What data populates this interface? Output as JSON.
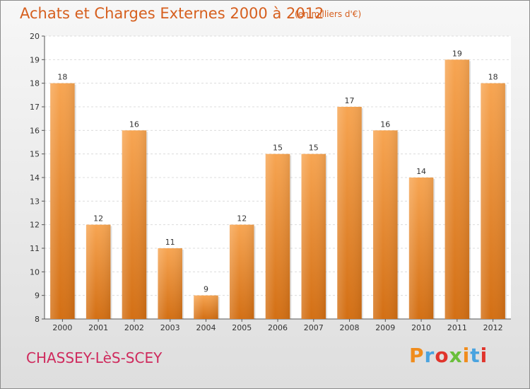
{
  "header": {
    "title": "Achats et Charges Externes 2000 à 2012",
    "unit": "(en milliers d'€)"
  },
  "footer": {
    "town": "CHASSEY-LèS-SCEY",
    "logo": {
      "text": "Proxiti",
      "colors": [
        "#f08c1c",
        "#4aa3df",
        "#e0342c",
        "#6abf3b",
        "#f08c1c",
        "#4aa3df",
        "#e0342c"
      ]
    }
  },
  "colors": {
    "bar_top": "#f7a552",
    "bar_bottom": "#d36f14",
    "title": "#d65f1e",
    "town": "#cf2a5d"
  },
  "chart_data": {
    "type": "bar",
    "title": "Achats et Charges Externes 2000 à 2012",
    "subtitle": "(en milliers d'€)",
    "categories": [
      "2000",
      "2001",
      "2002",
      "2003",
      "2004",
      "2005",
      "2006",
      "2007",
      "2008",
      "2009",
      "2010",
      "2011",
      "2012"
    ],
    "values": [
      18,
      12,
      16,
      11,
      9,
      12,
      15,
      15,
      17,
      16,
      14,
      19,
      18
    ],
    "ylim": [
      8,
      20
    ],
    "yticks": [
      8,
      9,
      10,
      11,
      12,
      13,
      14,
      15,
      16,
      17,
      18,
      19,
      20
    ],
    "grid": true,
    "xlabel": "",
    "ylabel": ""
  }
}
